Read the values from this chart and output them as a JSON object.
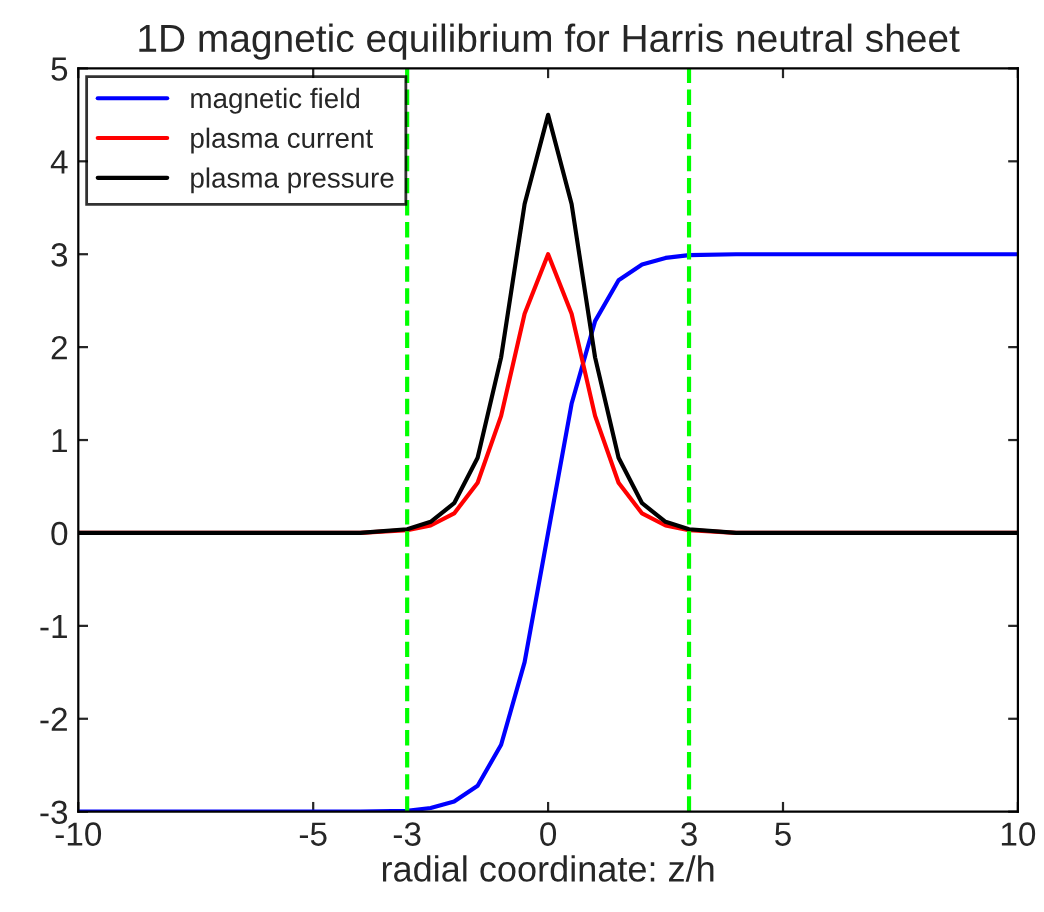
{
  "chart_data": {
    "type": "line",
    "title": "1D magnetic equilibrium for Harris neutral sheet",
    "xlabel": "radial coordinate: z/h",
    "x": [
      -10,
      -6,
      -4,
      -3,
      -2.5,
      -2,
      -1.5,
      -1,
      -0.5,
      0,
      0.5,
      1,
      1.5,
      2,
      2.5,
      3,
      4,
      6,
      10
    ],
    "series": [
      {
        "name": "magnetic field",
        "color": "#0000ff",
        "values": [
          -3,
          -3,
          -3,
          -2.99,
          -2.96,
          -2.89,
          -2.72,
          -2.28,
          -1.39,
          0,
          1.39,
          2.28,
          2.72,
          2.89,
          2.96,
          2.99,
          3,
          3,
          3
        ]
      },
      {
        "name": "plasma current",
        "color": "#ff0000",
        "values": [
          0,
          0,
          0,
          0.03,
          0.08,
          0.21,
          0.54,
          1.26,
          2.36,
          3,
          2.36,
          1.26,
          0.54,
          0.21,
          0.08,
          0.03,
          0,
          0,
          0
        ]
      },
      {
        "name": "plasma pressure",
        "color": "#000000",
        "values": [
          0,
          0,
          0,
          0.04,
          0.12,
          0.32,
          0.81,
          1.89,
          3.54,
          4.5,
          3.54,
          1.89,
          0.81,
          0.32,
          0.12,
          0.04,
          0,
          0,
          0
        ]
      }
    ],
    "xlim": [
      -10,
      10
    ],
    "xticks": [
      -10,
      -5,
      -3,
      0,
      3,
      5,
      10
    ],
    "ylim": [
      -3,
      5
    ],
    "yticks": [
      -3,
      -2,
      -1,
      0,
      1,
      2,
      3,
      4,
      5
    ],
    "ref_lines": [
      {
        "axis": "x",
        "value": -3,
        "color": "#00ff00",
        "line_style": "dashed"
      },
      {
        "axis": "x",
        "value": 3,
        "color": "#00ff00",
        "line_style": "dashed"
      }
    ],
    "legend": "top left",
    "grid": false
  }
}
